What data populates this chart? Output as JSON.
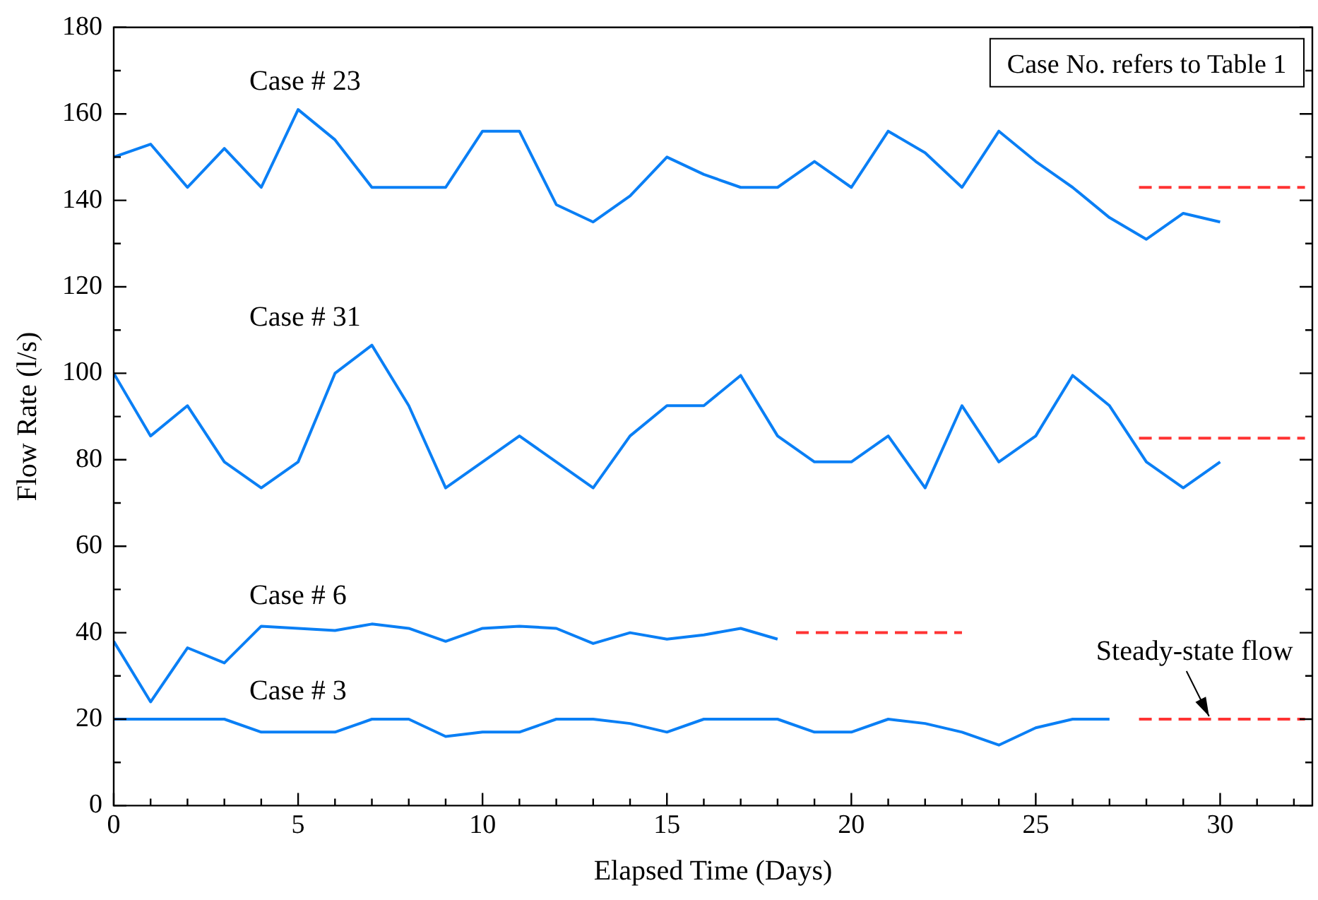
{
  "chart_data": {
    "type": "line",
    "xlabel": "Elapsed Time (Days)",
    "ylabel": "Flow Rate (l/s)",
    "annotations": [
      "Case No. refers to Table 1",
      {
        "text": "Steady-state flow",
        "x": 29.7,
        "y": 20
      }
    ],
    "xlim": [
      0,
      32.5
    ],
    "ylim": [
      0,
      180
    ],
    "xticks": [
      0,
      {
        "value": 1,
        "label": null
      },
      {
        "value": 2,
        "label": null
      },
      {
        "value": 3,
        "label": null
      },
      {
        "value": 4,
        "label": null
      },
      5,
      {
        "value": 6,
        "label": null
      },
      {
        "value": 7,
        "label": null
      },
      {
        "value": 8,
        "label": null
      },
      {
        "value": 9,
        "label": null
      },
      10,
      {
        "value": 11,
        "label": null
      },
      {
        "value": 12,
        "label": null
      },
      {
        "value": 13,
        "label": null
      },
      {
        "value": 14,
        "label": null
      },
      15,
      {
        "value": 16,
        "label": null
      },
      {
        "value": 17,
        "label": null
      },
      {
        "value": 18,
        "label": null
      },
      {
        "value": 19,
        "label": null
      },
      20,
      {
        "value": 21,
        "label": null
      },
      {
        "value": 22,
        "label": null
      },
      {
        "value": 23,
        "label": null
      },
      {
        "value": 24,
        "label": null
      },
      25,
      {
        "value": 26,
        "label": null
      },
      {
        "value": 27,
        "label": null
      },
      {
        "value": 28,
        "label": null
      },
      {
        "value": 29,
        "label": null
      },
      30,
      {
        "value": 31,
        "label": null
      },
      {
        "value": 32,
        "label": null
      }
    ],
    "yticks": [
      0,
      {
        "value": 10,
        "label": null
      },
      20,
      {
        "value": 30,
        "label": null
      },
      40,
      {
        "value": 50,
        "label": null
      },
      60,
      {
        "value": 70,
        "label": null
      },
      80,
      {
        "value": 90,
        "label": null
      },
      100,
      {
        "value": 110,
        "label": null
      },
      120,
      {
        "value": 130,
        "label": null
      },
      140,
      {
        "value": 150,
        "label": null
      },
      160,
      {
        "value": 170,
        "label": null
      },
      180
    ],
    "grid": false,
    "legend": false,
    "marker": "none",
    "series": [
      {
        "name": "Case # 23",
        "color": "#0a7ff5",
        "x": [
          0,
          1,
          2,
          3,
          4,
          5,
          6,
          7,
          8,
          9,
          10,
          11,
          12,
          13,
          14,
          15,
          16,
          17,
          18,
          19,
          20,
          21,
          22,
          23,
          24,
          25,
          26,
          27,
          28,
          29,
          30
        ],
        "values": [
          150,
          153,
          143,
          152,
          143,
          161,
          154,
          143,
          143,
          143,
          156,
          156,
          139,
          135,
          141,
          150,
          146,
          143,
          143,
          149,
          143,
          156,
          151,
          143,
          156,
          149,
          143,
          136,
          131,
          137,
          135
        ]
      },
      {
        "name": "Case # 31",
        "color": "#0a7ff5",
        "x": [
          0,
          1,
          2,
          3,
          4,
          5,
          6,
          7,
          8,
          9,
          10,
          11,
          12,
          13,
          14,
          15,
          16,
          17,
          18,
          19,
          20,
          21,
          22,
          23,
          24,
          25,
          26,
          27,
          28,
          29,
          30
        ],
        "values": [
          100,
          85.5,
          92.5,
          79.5,
          73.5,
          79.5,
          100,
          106.5,
          92.5,
          73.5,
          79.5,
          85.5,
          79.5,
          73.5,
          85.5,
          92.5,
          92.5,
          99.5,
          85.5,
          79.5,
          79.5,
          85.5,
          73.5,
          92.5,
          79.5,
          85.5,
          99.5,
          92.5,
          79.5,
          73.5,
          79.5
        ]
      },
      {
        "name": "Case # 6",
        "color": "#0a7ff5",
        "x": [
          0,
          1,
          2,
          3,
          4,
          5,
          6,
          7,
          8,
          9,
          10,
          11,
          12,
          13,
          14,
          15,
          16,
          17,
          18
        ],
        "values": [
          38,
          24,
          36.5,
          33,
          41.5,
          41,
          40.5,
          42,
          41,
          38,
          41,
          41.5,
          41,
          37.5,
          40,
          38.5,
          39.5,
          41,
          38.5
        ]
      },
      {
        "name": "Case # 3",
        "color": "#0a7ff5",
        "x": [
          0,
          1,
          2,
          3,
          4,
          5,
          6,
          7,
          8,
          9,
          10,
          11,
          12,
          13,
          14,
          15,
          16,
          17,
          18,
          19,
          20,
          21,
          22,
          23,
          24,
          25,
          26,
          27
        ],
        "values": [
          20,
          20,
          20,
          20,
          17,
          17,
          17,
          20,
          20,
          16,
          17,
          17,
          20,
          20,
          19,
          17,
          20,
          20,
          20,
          17,
          17,
          20,
          19,
          17,
          14,
          18,
          20,
          20
        ]
      },
      {
        "color": "#ff3333",
        "line_style": "dashed",
        "x": [
          27.8,
          32.3
        ],
        "values": [
          143,
          143
        ]
      },
      {
        "color": "#ff3333",
        "line_style": "dashed",
        "x": [
          27.8,
          32.3
        ],
        "values": [
          85,
          85
        ]
      },
      {
        "color": "#ff3333",
        "line_style": "dashed",
        "x": [
          18.5,
          23
        ],
        "values": [
          40,
          40
        ]
      },
      {
        "color": "#ff3333",
        "line_style": "dashed",
        "x": [
          27.8,
          32.3
        ],
        "values": [
          20,
          20
        ]
      }
    ]
  }
}
